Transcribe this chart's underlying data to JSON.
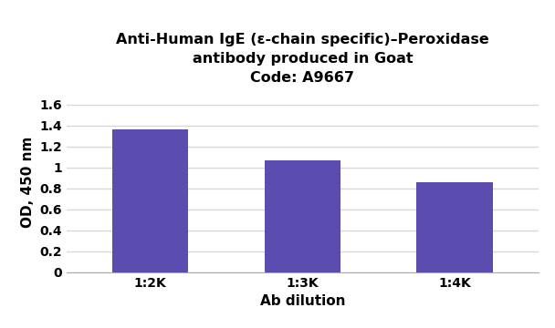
{
  "categories": [
    "1:2K",
    "1:3K",
    "1:4K"
  ],
  "values": [
    1.36,
    1.065,
    0.855
  ],
  "bar_color": "#5B4DB0",
  "title_line1": "Anti-Human IgE (ε-chain specific)–Peroxidase",
  "title_line2": "antibody produced in Goat",
  "title_line3": "Code: A9667",
  "xlabel": "Ab dilution",
  "ylabel": "OD, 450 nm",
  "ylim": [
    0,
    1.72
  ],
  "yticks": [
    0,
    0.2,
    0.4,
    0.6,
    0.8,
    1.0,
    1.2,
    1.4,
    1.6
  ],
  "ytick_labels": [
    "0",
    "0.2",
    "0.4",
    "0.6",
    "0.8",
    "1",
    "1.2",
    "1.4",
    "1.6"
  ],
  "background_color": "#ffffff",
  "grid_color": "#d8d8d8",
  "bar_width": 0.5,
  "title_fontsize": 11.5,
  "axis_label_fontsize": 11,
  "tick_fontsize": 10,
  "bar_xlim": [
    -0.55,
    2.55
  ]
}
